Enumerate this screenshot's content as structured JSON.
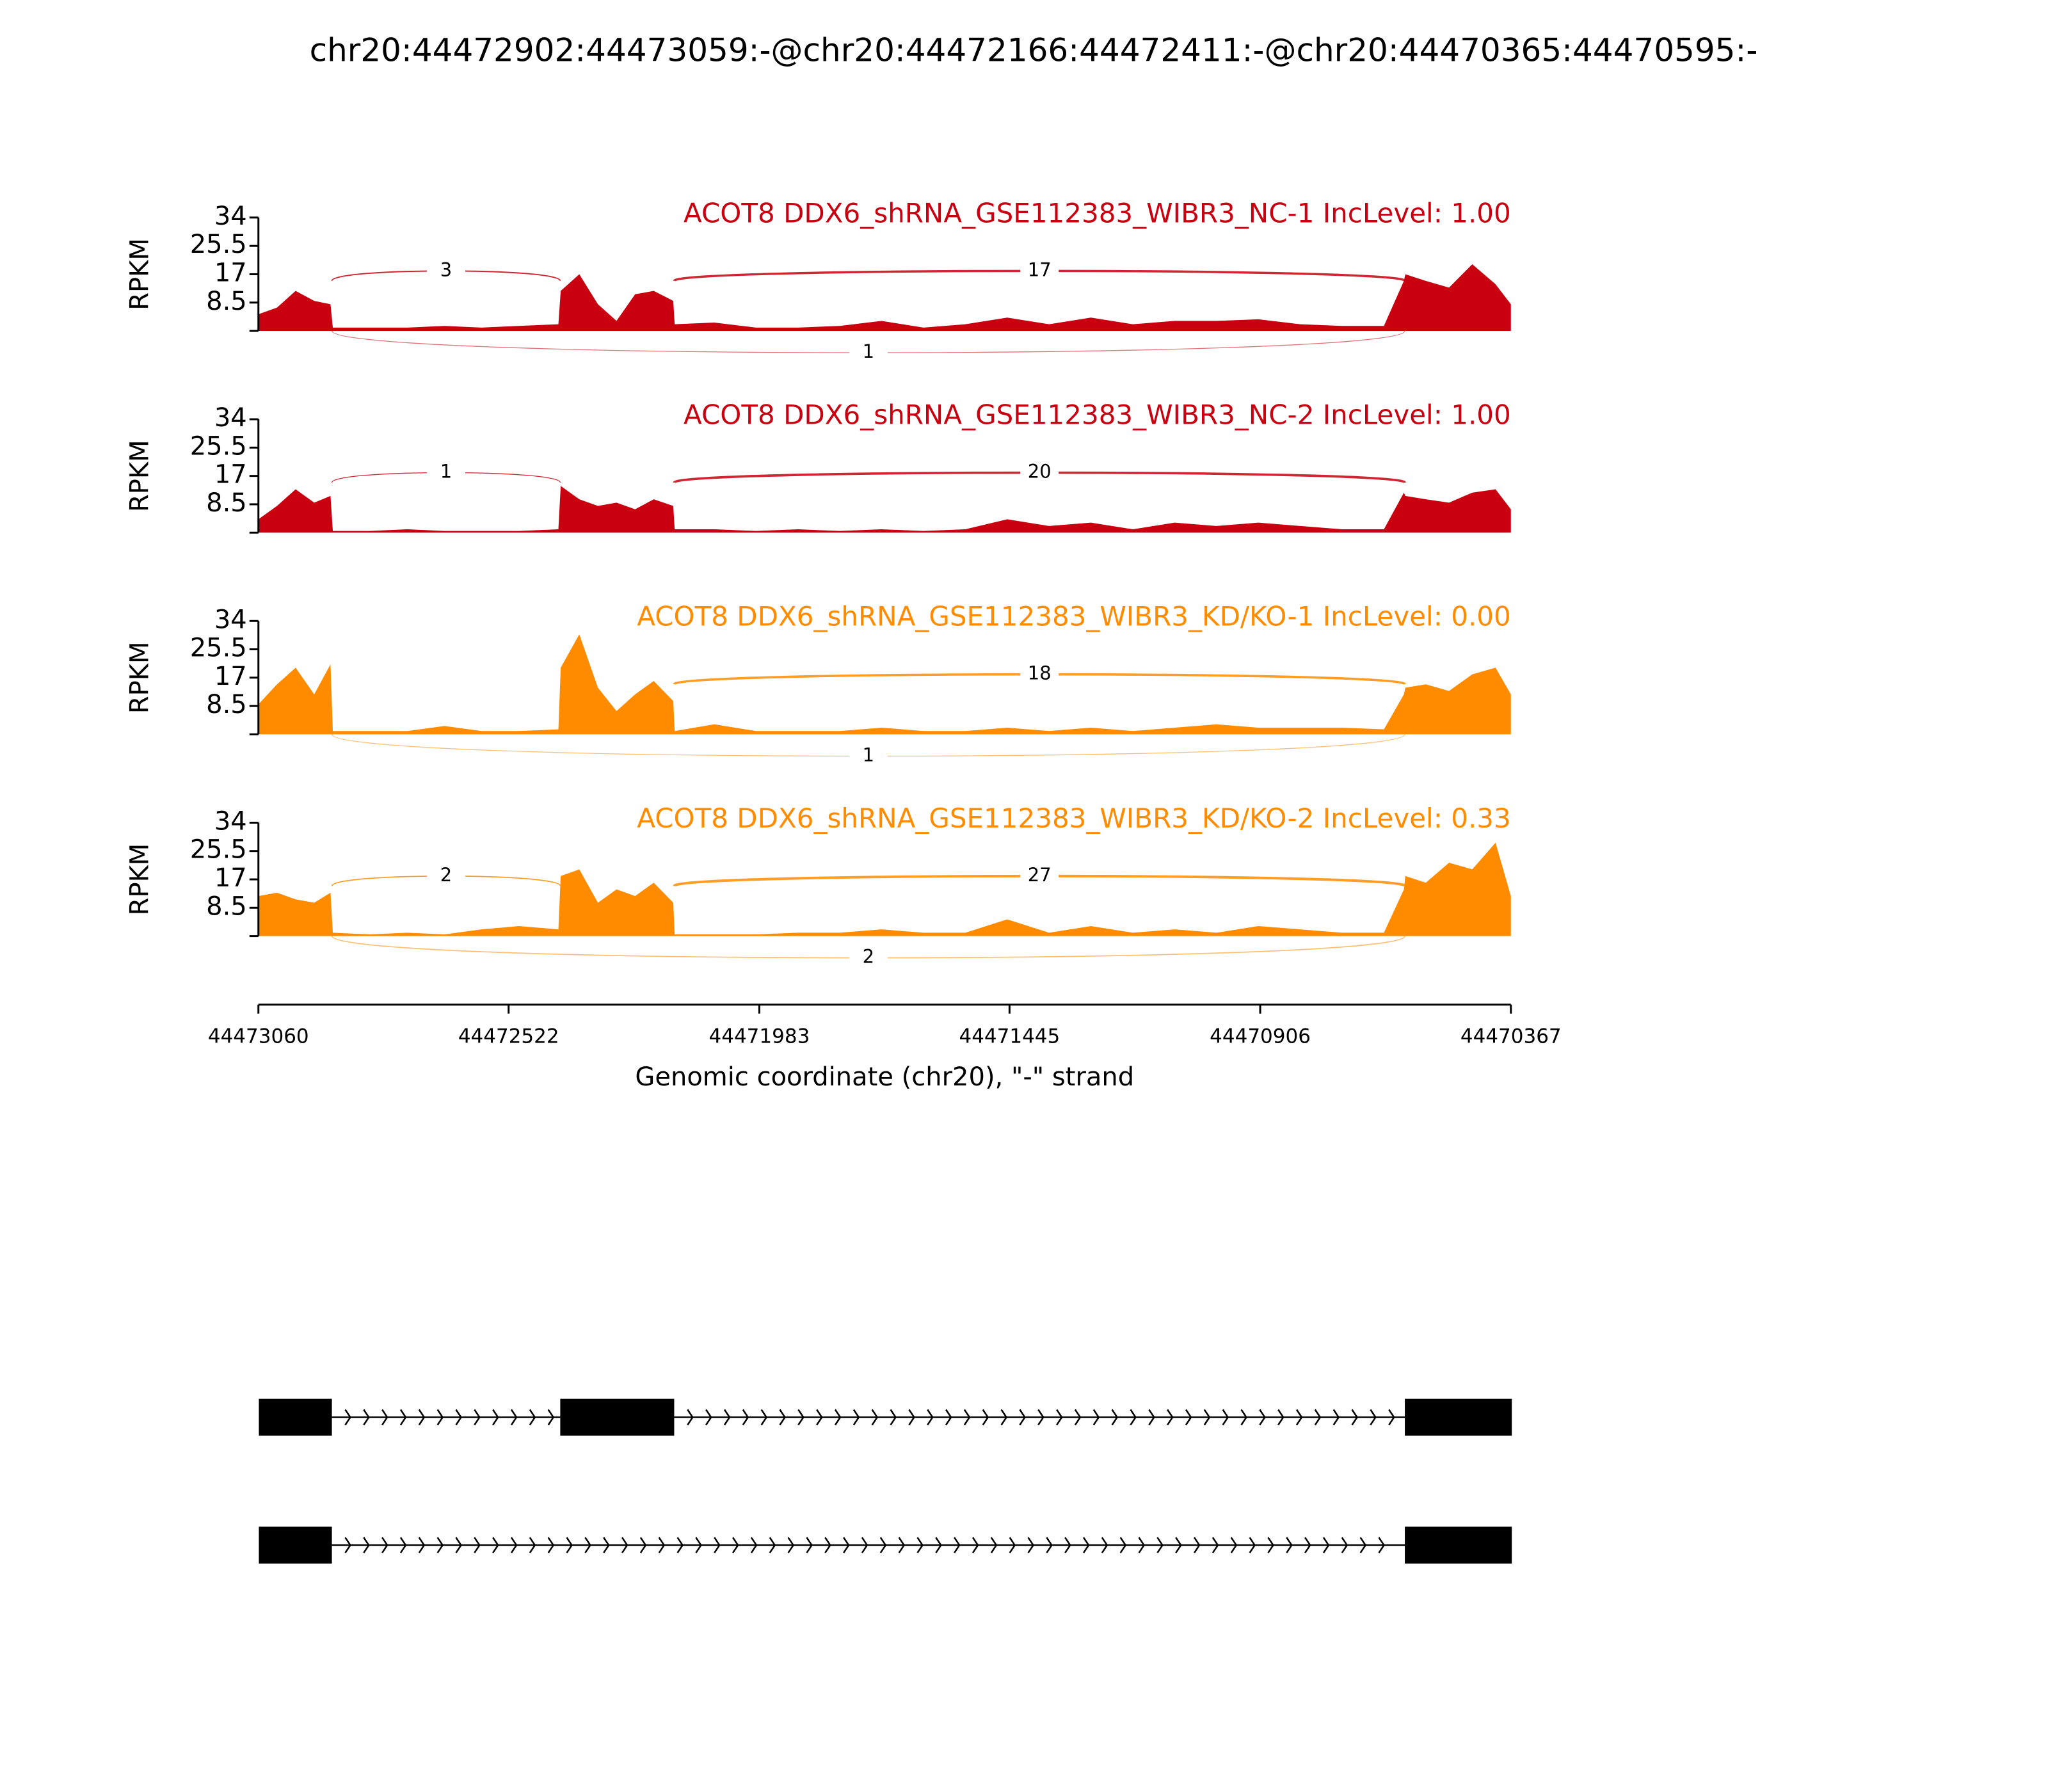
{
  "chart_data": {
    "type": "sashimi",
    "title": "chr20:44472902:44473059:-@chr20:44472166:44472411:-@chr20:44470365:44470595:-",
    "x": [
      44473060,
      44473020,
      44472980,
      44472940,
      44472905,
      44472900,
      44472820,
      44472740,
      44472660,
      44472580,
      44472500,
      44472415,
      44472410,
      44472370,
      44472330,
      44472290,
      44472250,
      44472210,
      44472168,
      44472165,
      44472080,
      44471990,
      44471900,
      44471810,
      44471720,
      44471630,
      44471540,
      44471450,
      44471360,
      44471270,
      44471180,
      44471090,
      44471000,
      44470910,
      44470820,
      44470730,
      44470640,
      44470597,
      44470594,
      44470550,
      44470500,
      44470450,
      44470400,
      44470367
    ],
    "xlim": [
      44473060,
      44470367
    ],
    "xticks": [
      44473060,
      44472522,
      44471983,
      44471445,
      44470906,
      44470367
    ],
    "xlabel": "Genomic coordinate (chr20), \"-\" strand",
    "ylabel": "RPKM",
    "ylim": [
      0,
      34
    ],
    "yticks": [
      8.5,
      17,
      25.5,
      34
    ],
    "series": [
      {
        "name": "ACOT8 DDX6_shRNA_GSE112383_WIBR3_NC-1 IncLevel: 1.00",
        "color": "#c8000f",
        "values": [
          5,
          7,
          12,
          9,
          8,
          1,
          1,
          1,
          1.5,
          1,
          1.5,
          2,
          12,
          17,
          8,
          3,
          11,
          12,
          9,
          2,
          2.5,
          1,
          1,
          1.5,
          3,
          1,
          2,
          4,
          2,
          4,
          2,
          3,
          3,
          3.5,
          2,
          1.5,
          1.5,
          15,
          17,
          15,
          13,
          20,
          14,
          8
        ],
        "junctions": [
          {
            "start": 44472902,
            "end": 44472411,
            "count": 3,
            "side": "above"
          },
          {
            "start": 44472166,
            "end": 44470595,
            "count": 17,
            "side": "above"
          },
          {
            "start": 44472902,
            "end": 44470595,
            "count": 1,
            "side": "below"
          }
        ]
      },
      {
        "name": "ACOT8 DDX6_shRNA_GSE112383_WIBR3_NC-2 IncLevel: 1.00",
        "color": "#c8000f",
        "values": [
          4,
          8,
          13,
          9,
          11,
          0.5,
          0.5,
          1,
          0.5,
          0.5,
          0.5,
          1,
          14,
          10,
          8,
          9,
          7,
          10,
          8,
          1,
          1,
          0.5,
          1,
          0.5,
          1,
          0.5,
          1,
          4,
          2,
          3,
          1,
          3,
          2,
          3,
          2,
          1,
          1,
          12,
          11,
          10,
          9,
          12,
          13,
          7
        ],
        "junctions": [
          {
            "start": 44472902,
            "end": 44472411,
            "count": 1,
            "side": "above"
          },
          {
            "start": 44472166,
            "end": 44470595,
            "count": 20,
            "side": "above"
          }
        ]
      },
      {
        "name": "ACOT8 DDX6_shRNA_GSE112383_WIBR3_KD/KO-1 IncLevel: 0.00",
        "color": "#ff8c00",
        "values": [
          9,
          15,
          20,
          12,
          21,
          1,
          1,
          1,
          2.5,
          1,
          1,
          1.5,
          20,
          30,
          14,
          7,
          12,
          16,
          10,
          1,
          3,
          1,
          1,
          1,
          2,
          1,
          1,
          2,
          1,
          2,
          1,
          2,
          3,
          2,
          2,
          2,
          1.5,
          12,
          14,
          15,
          13,
          18,
          20,
          12
        ],
        "junctions": [
          {
            "start": 44472166,
            "end": 44470595,
            "count": 18,
            "side": "above"
          },
          {
            "start": 44472902,
            "end": 44470595,
            "count": 1,
            "side": "below"
          }
        ]
      },
      {
        "name": "ACOT8 DDX6_shRNA_GSE112383_WIBR3_KD/KO-2 IncLevel: 0.33",
        "color": "#ff8c00",
        "values": [
          12,
          13,
          11,
          10,
          13,
          1,
          0.5,
          1,
          0.5,
          2,
          3,
          2,
          18,
          20,
          10,
          14,
          12,
          16,
          10,
          0.5,
          0.5,
          0.5,
          1,
          1,
          2,
          1,
          1,
          5,
          1,
          3,
          1,
          2,
          1,
          3,
          2,
          1,
          1,
          14,
          18,
          16,
          22,
          20,
          28,
          12
        ],
        "junctions": [
          {
            "start": 44472902,
            "end": 44472411,
            "count": 2,
            "side": "above"
          },
          {
            "start": 44472166,
            "end": 44470595,
            "count": 27,
            "side": "above"
          },
          {
            "start": 44472902,
            "end": 44470595,
            "count": 2,
            "side": "below"
          }
        ]
      }
    ],
    "transcripts": [
      {
        "exons": [
          [
            44473059,
            44472902
          ],
          [
            44472411,
            44472166
          ],
          [
            44470595,
            44470365
          ]
        ]
      },
      {
        "exons": [
          [
            44473059,
            44472902
          ],
          [
            44470595,
            44470365
          ]
        ]
      }
    ]
  }
}
